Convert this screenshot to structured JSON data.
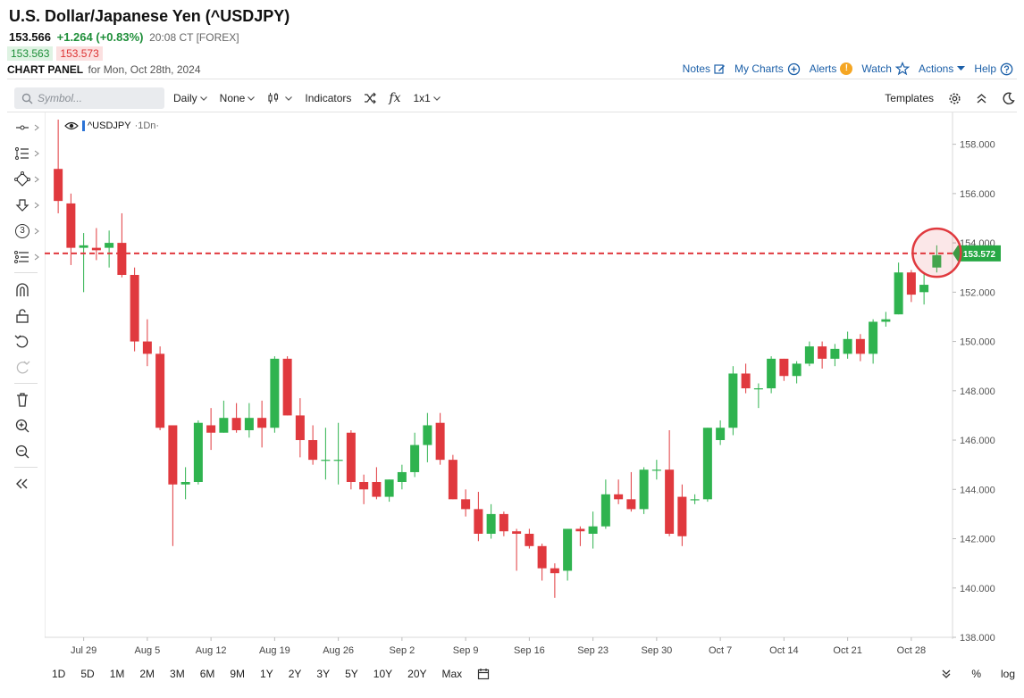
{
  "header": {
    "title": "U.S. Dollar/Japanese Yen (^USDJPY)",
    "last": "153.566",
    "change": "+1.264 (+0.83%)",
    "time": "20:08 CT [FOREX]",
    "bid": "153.563",
    "ask": "153.573",
    "panel_label": "CHART PANEL",
    "panel_date": "for Mon, Oct 28th, 2024"
  },
  "links": {
    "notes": "Notes",
    "mycharts": "My Charts",
    "alerts": "Alerts",
    "alert_glyph": "!",
    "watch": "Watch",
    "actions": "Actions",
    "help": "Help"
  },
  "toolbar": {
    "symbol_placeholder": "Symbol...",
    "period": "Daily",
    "compare": "None",
    "indicators": "Indicators",
    "fx": "fx",
    "layout": "1x1",
    "templates": "Templates"
  },
  "legend": {
    "symbol": "^USDJPY",
    "period": "·1Dn·"
  },
  "sidebar_glyph": {
    "fib": "3"
  },
  "ranges": [
    "1D",
    "5D",
    "1M",
    "2M",
    "3M",
    "6M",
    "9M",
    "1Y",
    "2Y",
    "3Y",
    "5Y",
    "10Y",
    "20Y",
    "Max"
  ],
  "scale": {
    "pct": "%",
    "log": "log"
  },
  "colors": {
    "up": "#2fb34f",
    "down": "#e0393e",
    "price_line": "#e0393e",
    "price_tag": "#27a844",
    "accent": "#1b5fa8"
  },
  "chart_data": {
    "type": "candlestick",
    "y_ticks": [
      "158.000",
      "156.000",
      "154.000",
      "152.000",
      "150.000",
      "148.000",
      "146.000",
      "144.000",
      "142.000",
      "140.000",
      "138.000"
    ],
    "ylim": [
      138,
      159
    ],
    "x_ticks": [
      {
        "label": "Jul 29",
        "index": 2
      },
      {
        "label": "Aug 5",
        "index": 7
      },
      {
        "label": "Aug 12",
        "index": 12
      },
      {
        "label": "Aug 19",
        "index": 17
      },
      {
        "label": "Aug 26",
        "index": 22
      },
      {
        "label": "Sep 2",
        "index": 27
      },
      {
        "label": "Sep 9",
        "index": 32
      },
      {
        "label": "Sep 16",
        "index": 37
      },
      {
        "label": "Sep 23",
        "index": 42
      },
      {
        "label": "Sep 30",
        "index": 47
      },
      {
        "label": "Oct 7",
        "index": 52
      },
      {
        "label": "Oct 14",
        "index": 57
      },
      {
        "label": "Oct 21",
        "index": 62
      },
      {
        "label": "Oct 28",
        "index": 67
      }
    ],
    "current_price": "153.572",
    "current_value": 153.572,
    "candles": [
      {
        "o": 157.0,
        "h": 159.0,
        "c": 155.7,
        "l": 155.2
      },
      {
        "o": 155.6,
        "h": 156.0,
        "c": 153.8,
        "l": 153.1
      },
      {
        "o": 153.8,
        "h": 154.4,
        "c": 153.9,
        "l": 152.0
      },
      {
        "o": 153.8,
        "h": 154.6,
        "c": 153.7,
        "l": 153.3
      },
      {
        "o": 153.8,
        "h": 154.5,
        "c": 154.0,
        "l": 153.0
      },
      {
        "o": 154.0,
        "h": 155.2,
        "c": 152.7,
        "l": 152.6
      },
      {
        "o": 152.7,
        "h": 153.0,
        "c": 150.0,
        "l": 149.6
      },
      {
        "o": 150.0,
        "h": 150.9,
        "c": 149.5,
        "l": 149.0
      },
      {
        "o": 149.5,
        "h": 149.8,
        "c": 146.5,
        "l": 146.4
      },
      {
        "o": 146.6,
        "h": 146.6,
        "c": 144.2,
        "l": 141.7
      },
      {
        "o": 144.2,
        "h": 144.9,
        "c": 144.3,
        "l": 143.6
      },
      {
        "o": 144.3,
        "h": 146.8,
        "c": 146.7,
        "l": 144.2
      },
      {
        "o": 146.6,
        "h": 147.3,
        "c": 146.3,
        "l": 145.6
      },
      {
        "o": 146.3,
        "h": 147.6,
        "c": 146.9,
        "l": 146.3
      },
      {
        "o": 146.9,
        "h": 147.5,
        "c": 146.4,
        "l": 146.3
      },
      {
        "o": 146.4,
        "h": 147.5,
        "c": 146.9,
        "l": 146.1
      },
      {
        "o": 146.9,
        "h": 147.6,
        "c": 146.5,
        "l": 145.7
      },
      {
        "o": 146.5,
        "h": 149.4,
        "c": 149.3,
        "l": 146.3
      },
      {
        "o": 149.3,
        "h": 149.4,
        "c": 147.0,
        "l": 147.0
      },
      {
        "o": 147.0,
        "h": 147.7,
        "c": 146.0,
        "l": 145.3
      },
      {
        "o": 146.0,
        "h": 146.6,
        "c": 145.2,
        "l": 145.0
      },
      {
        "o": 145.2,
        "h": 146.5,
        "c": 145.2,
        "l": 144.4
      },
      {
        "o": 145.2,
        "h": 146.7,
        "c": 145.2,
        "l": 144.2
      },
      {
        "o": 146.3,
        "h": 146.4,
        "c": 144.3,
        "l": 144.0
      },
      {
        "o": 144.3,
        "h": 144.6,
        "c": 144.0,
        "l": 143.4
      },
      {
        "o": 144.3,
        "h": 144.9,
        "c": 143.7,
        "l": 143.6
      },
      {
        "o": 143.7,
        "h": 144.4,
        "c": 144.4,
        "l": 143.5
      },
      {
        "o": 144.3,
        "h": 145.0,
        "c": 144.7,
        "l": 144.0
      },
      {
        "o": 144.7,
        "h": 146.3,
        "c": 145.8,
        "l": 144.5
      },
      {
        "o": 145.8,
        "h": 147.1,
        "c": 146.6,
        "l": 145.1
      },
      {
        "o": 146.7,
        "h": 147.1,
        "c": 145.2,
        "l": 145.0
      },
      {
        "o": 145.2,
        "h": 145.4,
        "c": 143.6,
        "l": 143.6
      },
      {
        "o": 143.6,
        "h": 144.0,
        "c": 143.2,
        "l": 142.9
      },
      {
        "o": 143.2,
        "h": 143.9,
        "c": 142.2,
        "l": 141.9
      },
      {
        "o": 142.2,
        "h": 143.4,
        "c": 143.0,
        "l": 142.0
      },
      {
        "o": 143.0,
        "h": 143.1,
        "c": 142.3,
        "l": 142.1
      },
      {
        "o": 142.3,
        "h": 142.4,
        "c": 142.2,
        "l": 140.7
      },
      {
        "o": 142.2,
        "h": 142.4,
        "c": 141.7,
        "l": 141.6
      },
      {
        "o": 141.7,
        "h": 141.8,
        "c": 140.8,
        "l": 140.3
      },
      {
        "o": 140.8,
        "h": 141.0,
        "c": 140.6,
        "l": 139.6
      },
      {
        "o": 140.7,
        "h": 142.4,
        "c": 142.4,
        "l": 140.3
      },
      {
        "o": 142.4,
        "h": 142.5,
        "c": 142.3,
        "l": 141.7
      },
      {
        "o": 142.2,
        "h": 143.1,
        "c": 142.5,
        "l": 141.6
      },
      {
        "o": 142.5,
        "h": 144.4,
        "c": 143.8,
        "l": 142.4
      },
      {
        "o": 143.8,
        "h": 144.4,
        "c": 143.6,
        "l": 143.4
      },
      {
        "o": 143.6,
        "h": 144.7,
        "c": 143.2,
        "l": 143.1
      },
      {
        "o": 143.2,
        "h": 144.9,
        "c": 144.8,
        "l": 143.0
      },
      {
        "o": 144.8,
        "h": 145.2,
        "c": 144.8,
        "l": 144.4
      },
      {
        "o": 144.8,
        "h": 146.4,
        "c": 142.2,
        "l": 142.1
      },
      {
        "o": 143.7,
        "h": 144.2,
        "c": 142.1,
        "l": 141.7
      },
      {
        "o": 143.6,
        "h": 143.8,
        "c": 143.6,
        "l": 143.4
      },
      {
        "o": 143.6,
        "h": 146.5,
        "c": 146.5,
        "l": 143.5
      },
      {
        "o": 146.0,
        "h": 146.8,
        "c": 146.5,
        "l": 145.8
      },
      {
        "o": 146.5,
        "h": 149.0,
        "c": 148.7,
        "l": 146.2
      },
      {
        "o": 148.7,
        "h": 149.1,
        "c": 148.1,
        "l": 147.9
      },
      {
        "o": 148.1,
        "h": 148.3,
        "c": 148.1,
        "l": 147.3
      },
      {
        "o": 148.1,
        "h": 149.4,
        "c": 149.3,
        "l": 147.9
      },
      {
        "o": 149.3,
        "h": 149.3,
        "c": 148.6,
        "l": 148.4
      },
      {
        "o": 148.6,
        "h": 149.2,
        "c": 149.1,
        "l": 148.3
      },
      {
        "o": 149.1,
        "h": 150.0,
        "c": 149.8,
        "l": 149.0
      },
      {
        "o": 149.8,
        "h": 150.0,
        "c": 149.3,
        "l": 148.9
      },
      {
        "o": 149.3,
        "h": 149.9,
        "c": 149.7,
        "l": 149.0
      },
      {
        "o": 149.5,
        "h": 150.4,
        "c": 150.1,
        "l": 149.3
      },
      {
        "o": 150.1,
        "h": 150.3,
        "c": 149.5,
        "l": 149.2
      },
      {
        "o": 149.5,
        "h": 150.9,
        "c": 150.8,
        "l": 149.1
      },
      {
        "o": 150.8,
        "h": 151.2,
        "c": 150.9,
        "l": 150.6
      },
      {
        "o": 151.1,
        "h": 153.2,
        "c": 152.8,
        "l": 151.1
      },
      {
        "o": 152.8,
        "h": 152.9,
        "c": 151.9,
        "l": 151.6
      },
      {
        "o": 152.0,
        "h": 152.8,
        "c": 152.3,
        "l": 151.5
      },
      {
        "o": 153.0,
        "h": 153.9,
        "c": 153.5,
        "l": 152.8
      }
    ]
  }
}
